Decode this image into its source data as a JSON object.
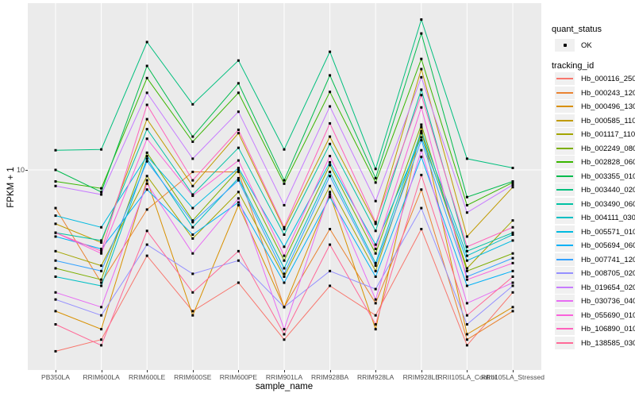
{
  "chart_data": {
    "type": "line",
    "title": "",
    "xlabel": "sample_name",
    "ylabel": "FPKM + 1",
    "y_scale": "log10",
    "y_ticks": [
      {
        "value": 10,
        "label": "10"
      }
    ],
    "grid": "major-only",
    "panel_bg": "#EBEBEB",
    "grid_color": "#FFFFFF",
    "point_color": "#000000",
    "point_shape": "square",
    "legend_position": "right",
    "categories": [
      "PB350LA",
      "RRIM600LA",
      "RRIM600LE",
      "RRIM600SE",
      "RRIM600PE",
      "RRIM901LA",
      "RRIM928BA",
      "RRIM928LA",
      "RRIM928LE",
      "RRII105LA_Control",
      "RRII105LA_Stressed"
    ],
    "series": [
      {
        "name": "Hb_000116_250",
        "color": "#F8766D",
        "values": [
          1.6,
          1.8,
          4.2,
          2.4,
          3.2,
          1.8,
          3.1,
          2.3,
          5.5,
          1.7,
          2.9
        ]
      },
      {
        "name": "Hb_000243_120",
        "color": "#EA8331",
        "values": [
          6.8,
          3.2,
          6.7,
          9.8,
          9.8,
          2.5,
          5.5,
          2.6,
          8.2,
          1.8,
          2.4
        ]
      },
      {
        "name": "Hb_000496_130",
        "color": "#D89000",
        "values": [
          2.4,
          2.0,
          9.0,
          2.3,
          7.0,
          2.5,
          7.8,
          2.0,
          15.4,
          1.9,
          2.5
        ]
      },
      {
        "name": "Hb_000585_110",
        "color": "#C09B00",
        "values": [
          5.8,
          4.8,
          16.7,
          8.5,
          14.5,
          5.5,
          14.0,
          5.8,
          27.7,
          5.1,
          8.4
        ]
      },
      {
        "name": "Hb_001117_110",
        "color": "#A3A500",
        "values": [
          4.4,
          3.8,
          9.4,
          5.0,
          8.0,
          3.4,
          8.5,
          3.6,
          14.5,
          3.7,
          6.0
        ]
      },
      {
        "name": "Hb_002249_080",
        "color": "#7CAE00",
        "values": [
          3.7,
          3.3,
          11.9,
          6.0,
          10.0,
          4.0,
          10.5,
          4.3,
          15.8,
          3.6,
          4.3
        ]
      },
      {
        "name": "Hb_002828_060",
        "color": "#39B600",
        "values": [
          8.9,
          8.3,
          25.3,
          13.3,
          21.8,
          8.7,
          22.0,
          8.8,
          30.7,
          7.0,
          8.8
        ]
      },
      {
        "name": "Hb_003355_010",
        "color": "#00BB4E",
        "values": [
          10.0,
          8.0,
          28.6,
          14.0,
          24.0,
          9.0,
          26.0,
          9.2,
          39.7,
          7.6,
          8.9
        ]
      },
      {
        "name": "Hb_003440_020",
        "color": "#00BF7D",
        "values": [
          12.2,
          12.3,
          36.4,
          19.4,
          30.2,
          12.3,
          33.0,
          10.1,
          45.7,
          11.2,
          10.2
        ]
      },
      {
        "name": "Hb_003490_060",
        "color": "#00C1A3",
        "values": [
          5.3,
          4.9,
          15.1,
          7.8,
          12.5,
          5.2,
          13.0,
          5.4,
          22.5,
          4.4,
          5.3
        ]
      },
      {
        "name": "Hb_004111_030",
        "color": "#00BFC4",
        "values": [
          3.4,
          3.1,
          11.2,
          5.6,
          9.2,
          3.7,
          9.8,
          3.9,
          14.8,
          4.2,
          5.2
        ]
      },
      {
        "name": "Hb_005571_010",
        "color": "#00BAE0",
        "values": [
          6.3,
          5.6,
          11.5,
          6.8,
          10.2,
          4.6,
          10.8,
          4.7,
          13.9,
          4.0,
          4.9
        ]
      },
      {
        "name": "Hb_005694_060",
        "color": "#00B0F6",
        "values": [
          5.1,
          4.5,
          8.2,
          5.2,
          7.2,
          3.2,
          7.6,
          3.4,
          11.4,
          3.1,
          3.6
        ]
      },
      {
        "name": "Hb_007741_120",
        "color": "#35A2FF",
        "values": [
          4.0,
          3.6,
          10.9,
          5.9,
          9.0,
          3.5,
          9.4,
          3.8,
          13.5,
          3.4,
          4.1
        ]
      },
      {
        "name": "Hb_008705_020",
        "color": "#9590FF",
        "values": [
          2.7,
          2.3,
          4.7,
          3.5,
          4.0,
          2.5,
          3.6,
          3.0,
          6.8,
          2.1,
          3.1
        ]
      },
      {
        "name": "Hb_019654_020",
        "color": "#C77CFF",
        "values": [
          8.5,
          7.8,
          21.8,
          11.2,
          18.0,
          7.0,
          19.0,
          7.3,
          25.5,
          6.5,
          8.6
        ]
      },
      {
        "name": "Hb_030736_040",
        "color": "#E76BF3",
        "values": [
          2.9,
          2.5,
          8.7,
          4.3,
          7.5,
          2.0,
          8.0,
          2.7,
          12.2,
          2.6,
          3.2
        ]
      },
      {
        "name": "Hb_055690_010",
        "color": "#FA62DB",
        "values": [
          5.3,
          4.3,
          13.7,
          7.7,
          11.0,
          4.2,
          11.5,
          4.5,
          18.8,
          3.3,
          3.9
        ]
      },
      {
        "name": "Hb_106890_010",
        "color": "#FF62BC",
        "values": [
          5.3,
          4.4,
          19.3,
          9.0,
          15.0,
          5.6,
          16.0,
          5.9,
          21.3,
          4.6,
          5.6
        ]
      },
      {
        "name": "Hb_138585_030",
        "color": "#FF6A98",
        "values": [
          2.1,
          1.7,
          5.4,
          2.9,
          4.4,
          1.9,
          4.7,
          2.1,
          9.5,
          2.3,
          3.4
        ]
      }
    ]
  },
  "legend": {
    "quant_status_title": "quant_status",
    "quant_status_items": [
      {
        "label": "OK"
      }
    ],
    "tracking_title": "tracking_id"
  }
}
